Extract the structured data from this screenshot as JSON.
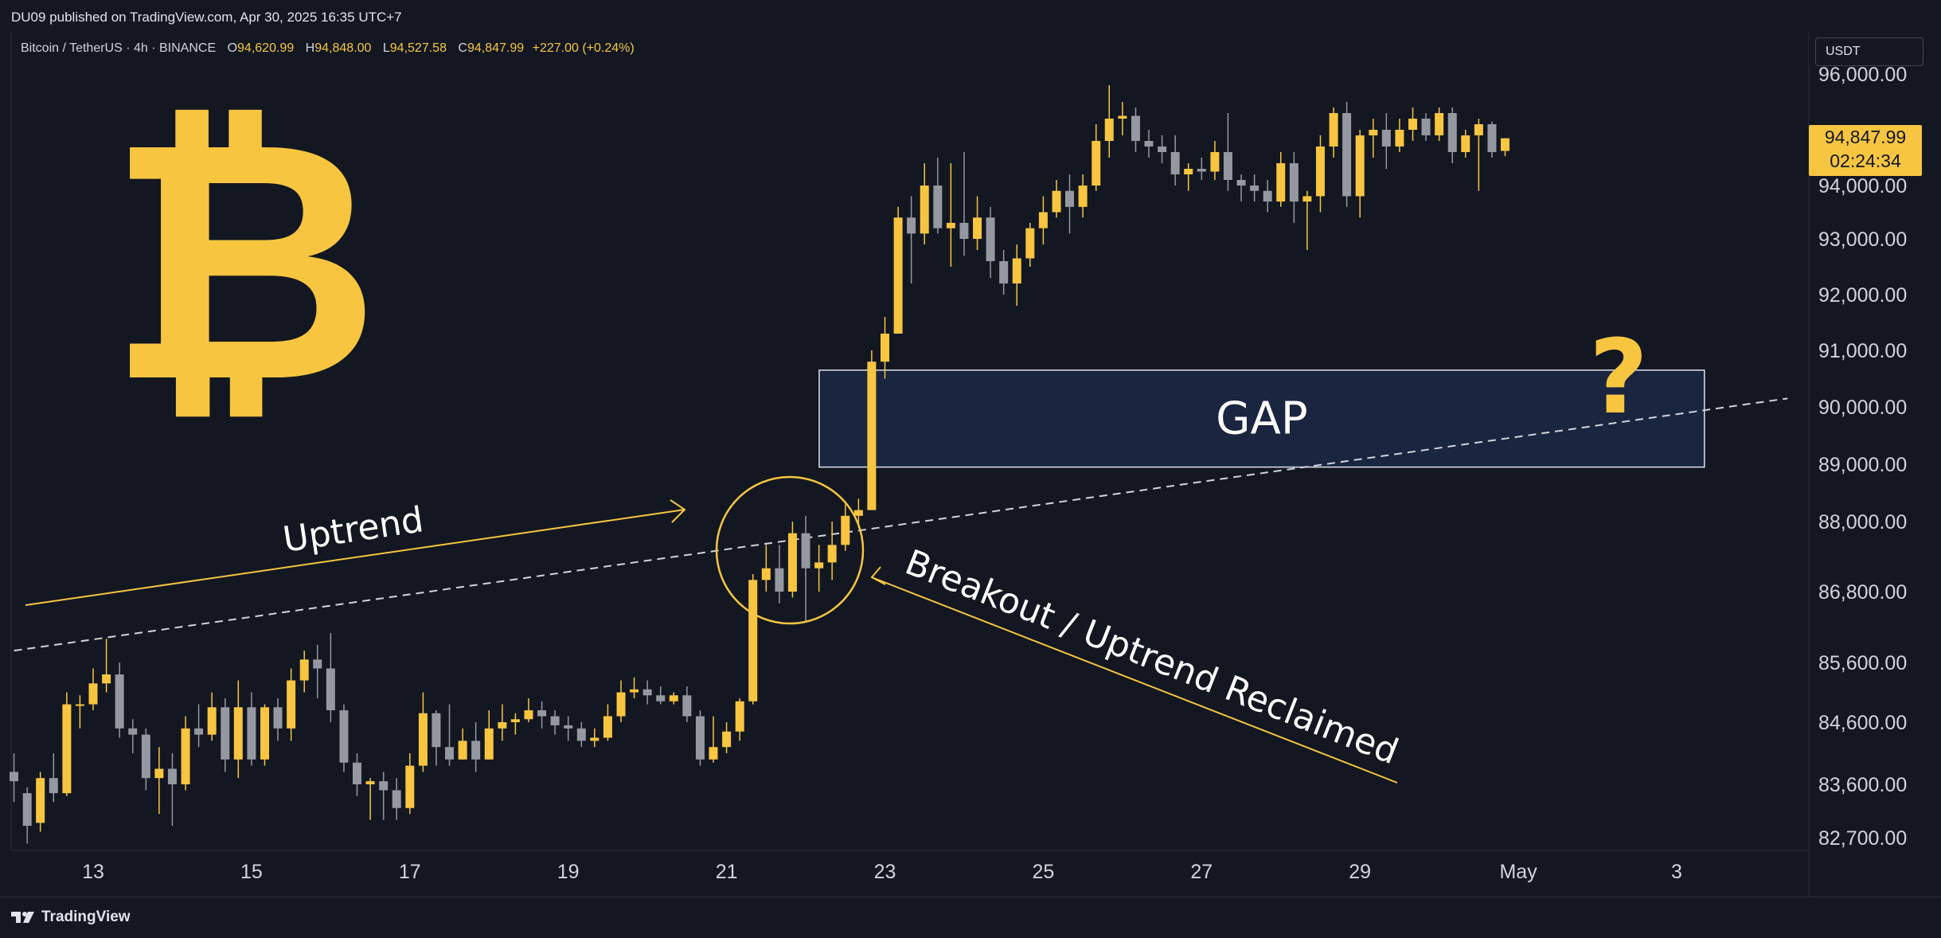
{
  "header": {
    "published_text": "DU09 published on TradingView.com, Apr 30, 2025 16:35 UTC+7"
  },
  "symbol": {
    "name": "Bitcoin / TetherUS · 4h · BINANCE",
    "open_label": "O",
    "open": "94,620.99",
    "high_label": "H",
    "high": "94,848.00",
    "low_label": "L",
    "low": "94,527.58",
    "close_label": "C",
    "close": "94,847.99",
    "change": "+227.00 (+0.24%)"
  },
  "currency": "USDT",
  "last_price": {
    "price": "94,847.99",
    "countdown": "02:24:34"
  },
  "logo": {
    "symbol": "₿"
  },
  "footer": {
    "brand": "TradingView"
  },
  "colors": {
    "background": "#131722",
    "up": "#f7c540",
    "down": "#9598a1",
    "accent": "#f7c540",
    "gap_fill": "#1a2540"
  },
  "chart_data": {
    "type": "candlestick",
    "x_axis": {
      "ticks": [
        {
          "label": "13",
          "day": 13
        },
        {
          "label": "15",
          "day": 15
        },
        {
          "label": "17",
          "day": 17
        },
        {
          "label": "19",
          "day": 19
        },
        {
          "label": "21",
          "day": 21
        },
        {
          "label": "23",
          "day": 23
        },
        {
          "label": "25",
          "day": 25
        },
        {
          "label": "27",
          "day": 27
        },
        {
          "label": "29",
          "day": 29
        },
        {
          "label": "May",
          "day": 31
        },
        {
          "label": "3",
          "day": 33
        }
      ]
    },
    "y_axis": {
      "ticks": [
        {
          "label": "96,000.00",
          "value": 96000
        },
        {
          "label": "94,000.00",
          "value": 94000
        },
        {
          "label": "93,000.00",
          "value": 93000
        },
        {
          "label": "92,000.00",
          "value": 92000
        },
        {
          "label": "91,000.00",
          "value": 91000
        },
        {
          "label": "90,000.00",
          "value": 90000
        },
        {
          "label": "89,000.00",
          "value": 89000
        },
        {
          "label": "88,000.00",
          "value": 88000
        },
        {
          "label": "86,800.00",
          "value": 86800
        },
        {
          "label": "85,600.00",
          "value": 85600
        },
        {
          "label": "84,600.00",
          "value": 84600
        },
        {
          "label": "83,600.00",
          "value": 83600
        },
        {
          "label": "82,700.00",
          "value": 82700
        }
      ]
    },
    "candles": [
      [
        12,
        83800,
        83650,
        84100,
        83300
      ],
      [
        12.167,
        83450,
        82900,
        83550,
        82600
      ],
      [
        12.333,
        82950,
        83700,
        83800,
        82800
      ],
      [
        12.5,
        83700,
        83450,
        84100,
        83300
      ],
      [
        12.667,
        83450,
        84900,
        85100,
        83400
      ],
      [
        12.833,
        84900,
        84900,
        85050,
        84500
      ],
      [
        13,
        84900,
        85250,
        85500,
        84800
      ],
      [
        13.167,
        85250,
        85400,
        86000,
        85100
      ],
      [
        13.333,
        85400,
        84500,
        85600,
        84350
      ],
      [
        13.5,
        84500,
        84400,
        84650,
        84100
      ],
      [
        13.667,
        84400,
        83700,
        84500,
        83500
      ],
      [
        13.833,
        83700,
        83850,
        84200,
        83100
      ],
      [
        14,
        83850,
        83600,
        84100,
        82900
      ],
      [
        14.167,
        83600,
        84500,
        84700,
        83500
      ],
      [
        14.333,
        84500,
        84400,
        84900,
        84200
      ],
      [
        14.5,
        84400,
        84850,
        85100,
        84300
      ],
      [
        14.667,
        84850,
        84000,
        85000,
        83800
      ],
      [
        14.833,
        84000,
        84850,
        85300,
        83700
      ],
      [
        15,
        84850,
        84000,
        85100,
        83900
      ],
      [
        15.167,
        84000,
        84850,
        84900,
        83900
      ],
      [
        15.333,
        84850,
        84500,
        85000,
        84300
      ],
      [
        15.5,
        84500,
        85300,
        85500,
        84300
      ],
      [
        15.667,
        85300,
        85650,
        85800,
        85100
      ],
      [
        15.833,
        85650,
        85500,
        85900,
        85000
      ],
      [
        16,
        85500,
        84800,
        86100,
        84600
      ],
      [
        16.167,
        84800,
        83950,
        84900,
        83800
      ],
      [
        16.333,
        83950,
        83600,
        84100,
        83400
      ],
      [
        16.5,
        83600,
        83650,
        83700,
        83000
      ],
      [
        16.667,
        83650,
        83500,
        83800,
        83000
      ],
      [
        16.833,
        83500,
        83200,
        83700,
        83000
      ],
      [
        17,
        83200,
        83900,
        84100,
        83100
      ],
      [
        17.167,
        83900,
        84750,
        85100,
        83800
      ],
      [
        17.333,
        84750,
        84200,
        84800,
        83900
      ],
      [
        17.5,
        84200,
        84000,
        84900,
        83900
      ],
      [
        17.667,
        84000,
        84300,
        84500,
        84000
      ],
      [
        17.833,
        84300,
        84000,
        84600,
        83800
      ],
      [
        18,
        84000,
        84500,
        84800,
        84000
      ],
      [
        18.167,
        84500,
        84600,
        84900,
        84300
      ],
      [
        18.333,
        84600,
        84650,
        84750,
        84400
      ],
      [
        18.5,
        84650,
        84800,
        85000,
        84600
      ],
      [
        18.667,
        84800,
        84700,
        84950,
        84500
      ],
      [
        18.833,
        84700,
        84550,
        84800,
        84400
      ],
      [
        19,
        84550,
        84500,
        84700,
        84300
      ],
      [
        19.167,
        84500,
        84300,
        84600,
        84200
      ],
      [
        19.333,
        84300,
        84350,
        84500,
        84200
      ],
      [
        19.5,
        84350,
        84700,
        84900,
        84300
      ],
      [
        19.667,
        84700,
        85100,
        85300,
        84600
      ],
      [
        19.833,
        85100,
        85150,
        85350,
        85000
      ],
      [
        20,
        85150,
        85050,
        85300,
        84900
      ],
      [
        20.167,
        85050,
        84950,
        85200,
        84900
      ],
      [
        20.333,
        84950,
        85050,
        85100,
        84900
      ],
      [
        20.5,
        85050,
        84700,
        85200,
        84600
      ],
      [
        20.667,
        84700,
        84000,
        84800,
        83900
      ],
      [
        20.833,
        84000,
        84200,
        84700,
        83950
      ],
      [
        21,
        84200,
        84450,
        84600,
        84100
      ],
      [
        21.167,
        84450,
        84950,
        85000,
        84300
      ],
      [
        21.333,
        84950,
        87000,
        87100,
        84900
      ],
      [
        21.5,
        87000,
        87200,
        87600,
        86800
      ],
      [
        21.667,
        87200,
        86800,
        87600,
        86600
      ],
      [
        21.833,
        86800,
        87800,
        88000,
        86700
      ],
      [
        22,
        87800,
        87200,
        88100,
        86300
      ],
      [
        22.167,
        87200,
        87300,
        87600,
        86800
      ],
      [
        22.333,
        87300,
        87600,
        88000,
        87000
      ],
      [
        22.5,
        87600,
        88100,
        88300,
        87500
      ],
      [
        22.667,
        88100,
        88200,
        88400,
        87900
      ],
      [
        22.833,
        88200,
        90800,
        91000,
        88200
      ],
      [
        23,
        90800,
        91300,
        91600,
        90500
      ],
      [
        23.167,
        91300,
        93400,
        93600,
        91300
      ],
      [
        23.333,
        93400,
        93100,
        93800,
        92200
      ],
      [
        23.5,
        93100,
        94000,
        94400,
        92900
      ],
      [
        23.667,
        94000,
        93200,
        94500,
        93100
      ],
      [
        23.833,
        93200,
        93300,
        94400,
        92500
      ],
      [
        24,
        93300,
        93000,
        94600,
        92700
      ],
      [
        24.167,
        93000,
        93400,
        93800,
        92800
      ],
      [
        24.333,
        93400,
        92600,
        93600,
        92300
      ],
      [
        24.5,
        92600,
        92200,
        92800,
        92000
      ],
      [
        24.667,
        92200,
        92650,
        92900,
        91800
      ],
      [
        24.833,
        92650,
        93200,
        93300,
        92500
      ],
      [
        25,
        93200,
        93500,
        93800,
        92900
      ],
      [
        25.167,
        93500,
        93900,
        94100,
        93400
      ],
      [
        25.333,
        93900,
        93600,
        94200,
        93100
      ],
      [
        25.5,
        93600,
        94000,
        94200,
        93400
      ],
      [
        25.667,
        94000,
        94800,
        95100,
        93900
      ],
      [
        25.833,
        94800,
        95200,
        95800,
        94500
      ],
      [
        26,
        95200,
        95250,
        95500,
        94900
      ],
      [
        26.167,
        95250,
        94800,
        95400,
        94600
      ],
      [
        26.333,
        94800,
        94700,
        95000,
        94500
      ],
      [
        26.5,
        94700,
        94600,
        94900,
        94400
      ],
      [
        26.667,
        94600,
        94200,
        94900,
        94000
      ],
      [
        26.833,
        94200,
        94300,
        94400,
        93900
      ],
      [
        27,
        94300,
        94250,
        94500,
        94100
      ],
      [
        27.167,
        94250,
        94600,
        94800,
        94100
      ],
      [
        27.333,
        94600,
        94100,
        95300,
        93900
      ],
      [
        27.5,
        94100,
        94000,
        94200,
        93700
      ],
      [
        27.667,
        94000,
        93900,
        94200,
        93700
      ],
      [
        27.833,
        93900,
        93700,
        94100,
        93500
      ],
      [
        28,
        93700,
        94400,
        94600,
        93600
      ],
      [
        28.167,
        94400,
        93700,
        94600,
        93300
      ],
      [
        28.333,
        93700,
        93800,
        93900,
        92800
      ],
      [
        28.5,
        93800,
        94700,
        94900,
        93500
      ],
      [
        28.667,
        94700,
        95300,
        95400,
        94500
      ],
      [
        28.833,
        95300,
        93800,
        95500,
        93600
      ],
      [
        29,
        93800,
        94900,
        95000,
        93400
      ],
      [
        29.167,
        94900,
        95000,
        95200,
        94500
      ],
      [
        29.333,
        95000,
        94700,
        95300,
        94300
      ],
      [
        29.5,
        94700,
        95000,
        95200,
        94600
      ],
      [
        29.667,
        95000,
        95200,
        95400,
        94800
      ],
      [
        29.833,
        95200,
        94900,
        95300,
        94800
      ],
      [
        30,
        94900,
        95300,
        95400,
        94800
      ],
      [
        30.167,
        95300,
        94600,
        95400,
        94400
      ],
      [
        30.333,
        94600,
        94900,
        95000,
        94500
      ],
      [
        30.5,
        94900,
        95100,
        95200,
        93900
      ],
      [
        30.667,
        95100,
        94600,
        95150,
        94500
      ],
      [
        30.833,
        94620.99,
        94847.99,
        94848,
        94527.58
      ]
    ],
    "trendline": {
      "from": [
        12,
        85800
      ],
      "to": [
        34.4,
        90150
      ]
    },
    "annotations": [
      {
        "text": "Uptrend"
      },
      {
        "text": "GAP",
        "y_range": [
          88950,
          90650
        ],
        "x_range": [
          22.2,
          33.35
        ]
      },
      {
        "text": "Breakout / Uptrend Reclaimed"
      },
      {
        "text": "?"
      }
    ]
  }
}
